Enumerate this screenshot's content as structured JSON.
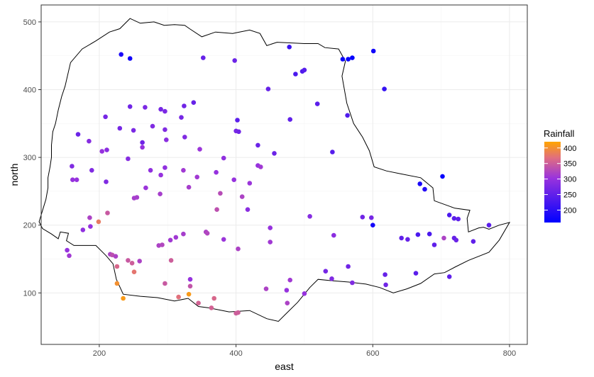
{
  "chart_data": {
    "type": "scatter",
    "xlabel": "east",
    "ylabel": "north",
    "xlim": [
      115,
      826
    ],
    "ylim": [
      24,
      525
    ],
    "xticks": [
      200,
      400,
      600,
      800
    ],
    "xtick_labels": [
      "200",
      "400",
      "600",
      "800"
    ],
    "yticks": [
      100,
      200,
      300,
      400,
      500
    ],
    "ytick_labels": [
      "100",
      "200",
      "300",
      "400",
      "500"
    ],
    "grid": true,
    "legend": {
      "title": "Rainfall",
      "position": "right",
      "range": [
        160,
        420
      ],
      "ticks": [
        200,
        250,
        300,
        350,
        400
      ],
      "tick_labels": [
        "200",
        "250",
        "300",
        "350",
        "400"
      ],
      "color_low": "#0000ff",
      "color_high": "#ffa500"
    },
    "colors": {
      "low": "#0000ff",
      "mid": "#9933dd",
      "high": "#ffa500",
      "panel_border": "#333333",
      "grid_major": "#ebebeb",
      "grid_minor": "#f5f5f5",
      "outline": "#000000"
    },
    "outline": [
      [
        140,
        180
      ],
      [
        143,
        190
      ],
      [
        155,
        188
      ],
      [
        152,
        177
      ],
      [
        163,
        170
      ],
      [
        180,
        170
      ],
      [
        195,
        170
      ],
      [
        210,
        155
      ],
      [
        220,
        143
      ],
      [
        225,
        120
      ],
      [
        235,
        98
      ],
      [
        260,
        95
      ],
      [
        285,
        93
      ],
      [
        310,
        88
      ],
      [
        330,
        92
      ],
      [
        345,
        80
      ],
      [
        360,
        78
      ],
      [
        390,
        72
      ],
      [
        420,
        74
      ],
      [
        445,
        62
      ],
      [
        462,
        58
      ],
      [
        472,
        68
      ],
      [
        490,
        86
      ],
      [
        508,
        108
      ],
      [
        520,
        120
      ],
      [
        540,
        118
      ],
      [
        565,
        116
      ],
      [
        590,
        113
      ],
      [
        610,
        108
      ],
      [
        630,
        100
      ],
      [
        650,
        106
      ],
      [
        670,
        114
      ],
      [
        690,
        128
      ],
      [
        705,
        130
      ],
      [
        720,
        138
      ],
      [
        740,
        148
      ],
      [
        770,
        160
      ],
      [
        785,
        178
      ],
      [
        800,
        204
      ],
      [
        785,
        200
      ],
      [
        770,
        194
      ],
      [
        762,
        197
      ],
      [
        755,
        196
      ],
      [
        740,
        190
      ],
      [
        738,
        210
      ],
      [
        742,
        222
      ],
      [
        720,
        225
      ],
      [
        690,
        236
      ],
      [
        688,
        255
      ],
      [
        670,
        270
      ],
      [
        640,
        276
      ],
      [
        620,
        280
      ],
      [
        602,
        286
      ],
      [
        595,
        310
      ],
      [
        585,
        330
      ],
      [
        572,
        350
      ],
      [
        562,
        380
      ],
      [
        555,
        420
      ],
      [
        560,
        442
      ],
      [
        550,
        460
      ],
      [
        530,
        462
      ],
      [
        520,
        468
      ],
      [
        500,
        468
      ],
      [
        460,
        470
      ],
      [
        445,
        465
      ],
      [
        435,
        483
      ],
      [
        420,
        488
      ],
      [
        405,
        485
      ],
      [
        395,
        483
      ],
      [
        370,
        485
      ],
      [
        350,
        478
      ],
      [
        332,
        490
      ],
      [
        325,
        495
      ],
      [
        310,
        496
      ],
      [
        295,
        495
      ],
      [
        280,
        500
      ],
      [
        260,
        498
      ],
      [
        245,
        505
      ],
      [
        230,
        490
      ],
      [
        215,
        485
      ],
      [
        195,
        472
      ],
      [
        175,
        460
      ],
      [
        158,
        440
      ],
      [
        150,
        405
      ],
      [
        145,
        390
      ],
      [
        140,
        370
      ],
      [
        136,
        350
      ],
      [
        132,
        338
      ],
      [
        130,
        318
      ],
      [
        130,
        300
      ],
      [
        128,
        286
      ],
      [
        125,
        270
      ],
      [
        125,
        255
      ],
      [
        122,
        238
      ],
      [
        118,
        225
      ],
      [
        112,
        205
      ],
      [
        117,
        195
      ],
      [
        130,
        187
      ],
      [
        140,
        180
      ]
    ],
    "points": [
      {
        "x": 232,
        "y": 452,
        "v": 185
      },
      {
        "x": 245,
        "y": 446,
        "v": 175
      },
      {
        "x": 352,
        "y": 447,
        "v": 255
      },
      {
        "x": 398,
        "y": 443,
        "v": 260
      },
      {
        "x": 478,
        "y": 463,
        "v": 215
      },
      {
        "x": 487,
        "y": 423,
        "v": 230
      },
      {
        "x": 497,
        "y": 427,
        "v": 235
      },
      {
        "x": 500,
        "y": 429,
        "v": 240
      },
      {
        "x": 556,
        "y": 445,
        "v": 170
      },
      {
        "x": 564,
        "y": 445,
        "v": 170
      },
      {
        "x": 570,
        "y": 447,
        "v": 165
      },
      {
        "x": 601,
        "y": 457,
        "v": 175
      },
      {
        "x": 617,
        "y": 401,
        "v": 210
      },
      {
        "x": 447,
        "y": 401,
        "v": 255
      },
      {
        "x": 519,
        "y": 379,
        "v": 245
      },
      {
        "x": 563,
        "y": 362,
        "v": 235
      },
      {
        "x": 479,
        "y": 356,
        "v": 250
      },
      {
        "x": 541,
        "y": 308,
        "v": 240
      },
      {
        "x": 456,
        "y": 306,
        "v": 260
      },
      {
        "x": 432,
        "y": 318,
        "v": 260
      },
      {
        "x": 338,
        "y": 381,
        "v": 255
      },
      {
        "x": 324,
        "y": 376,
        "v": 265
      },
      {
        "x": 267,
        "y": 374,
        "v": 275
      },
      {
        "x": 245,
        "y": 375,
        "v": 265
      },
      {
        "x": 290,
        "y": 371,
        "v": 270
      },
      {
        "x": 296,
        "y": 368,
        "v": 275
      },
      {
        "x": 320,
        "y": 359,
        "v": 270
      },
      {
        "x": 402,
        "y": 355,
        "v": 245
      },
      {
        "x": 169,
        "y": 334,
        "v": 260
      },
      {
        "x": 209,
        "y": 360,
        "v": 270
      },
      {
        "x": 230,
        "y": 343,
        "v": 270
      },
      {
        "x": 250,
        "y": 340,
        "v": 275
      },
      {
        "x": 278,
        "y": 346,
        "v": 280
      },
      {
        "x": 296,
        "y": 341,
        "v": 280
      },
      {
        "x": 400,
        "y": 339,
        "v": 270
      },
      {
        "x": 404,
        "y": 338,
        "v": 265
      },
      {
        "x": 185,
        "y": 324,
        "v": 285
      },
      {
        "x": 263,
        "y": 322,
        "v": 265
      },
      {
        "x": 298,
        "y": 326,
        "v": 290
      },
      {
        "x": 325,
        "y": 330,
        "v": 280
      },
      {
        "x": 204,
        "y": 309,
        "v": 300
      },
      {
        "x": 211,
        "y": 311,
        "v": 290
      },
      {
        "x": 263,
        "y": 315,
        "v": 300
      },
      {
        "x": 347,
        "y": 312,
        "v": 305
      },
      {
        "x": 382,
        "y": 299,
        "v": 295
      },
      {
        "x": 160,
        "y": 287,
        "v": 280
      },
      {
        "x": 242,
        "y": 298,
        "v": 285
      },
      {
        "x": 275,
        "y": 281,
        "v": 295
      },
      {
        "x": 296,
        "y": 285,
        "v": 295
      },
      {
        "x": 290,
        "y": 274,
        "v": 300
      },
      {
        "x": 323,
        "y": 281,
        "v": 310
      },
      {
        "x": 343,
        "y": 271,
        "v": 310
      },
      {
        "x": 371,
        "y": 278,
        "v": 300
      },
      {
        "x": 397,
        "y": 267,
        "v": 300
      },
      {
        "x": 420,
        "y": 262,
        "v": 305
      },
      {
        "x": 432,
        "y": 288,
        "v": 300
      },
      {
        "x": 436,
        "y": 286,
        "v": 310
      },
      {
        "x": 189,
        "y": 281,
        "v": 280
      },
      {
        "x": 161,
        "y": 267,
        "v": 300
      },
      {
        "x": 167,
        "y": 267,
        "v": 300
      },
      {
        "x": 210,
        "y": 264,
        "v": 280
      },
      {
        "x": 268,
        "y": 255,
        "v": 305
      },
      {
        "x": 289,
        "y": 246,
        "v": 315
      },
      {
        "x": 331,
        "y": 256,
        "v": 315
      },
      {
        "x": 377,
        "y": 247,
        "v": 330
      },
      {
        "x": 409,
        "y": 242,
        "v": 320
      },
      {
        "x": 251,
        "y": 240,
        "v": 315
      },
      {
        "x": 255,
        "y": 241,
        "v": 315
      },
      {
        "x": 212,
        "y": 218,
        "v": 345
      },
      {
        "x": 186,
        "y": 211,
        "v": 320
      },
      {
        "x": 199,
        "y": 205,
        "v": 380
      },
      {
        "x": 176,
        "y": 193,
        "v": 295
      },
      {
        "x": 187,
        "y": 198,
        "v": 300
      },
      {
        "x": 372,
        "y": 223,
        "v": 335
      },
      {
        "x": 417,
        "y": 223,
        "v": 290
      },
      {
        "x": 450,
        "y": 196,
        "v": 300
      },
      {
        "x": 508,
        "y": 213,
        "v": 285
      },
      {
        "x": 585,
        "y": 212,
        "v": 265
      },
      {
        "x": 598,
        "y": 211,
        "v": 270
      },
      {
        "x": 600,
        "y": 200,
        "v": 180
      },
      {
        "x": 356,
        "y": 190,
        "v": 320
      },
      {
        "x": 358,
        "y": 188,
        "v": 325
      },
      {
        "x": 323,
        "y": 187,
        "v": 315
      },
      {
        "x": 312,
        "y": 182,
        "v": 310
      },
      {
        "x": 382,
        "y": 179,
        "v": 305
      },
      {
        "x": 450,
        "y": 175,
        "v": 310
      },
      {
        "x": 543,
        "y": 185,
        "v": 290
      },
      {
        "x": 642,
        "y": 181,
        "v": 250
      },
      {
        "x": 651,
        "y": 179,
        "v": 255
      },
      {
        "x": 666,
        "y": 186,
        "v": 230
      },
      {
        "x": 683,
        "y": 187,
        "v": 230
      },
      {
        "x": 690,
        "y": 171,
        "v": 250
      },
      {
        "x": 712,
        "y": 215,
        "v": 230
      },
      {
        "x": 719,
        "y": 210,
        "v": 245
      },
      {
        "x": 725,
        "y": 209,
        "v": 250
      },
      {
        "x": 704,
        "y": 181,
        "v": 320
      },
      {
        "x": 719,
        "y": 181,
        "v": 255
      },
      {
        "x": 722,
        "y": 178,
        "v": 260
      },
      {
        "x": 747,
        "y": 176,
        "v": 250
      },
      {
        "x": 770,
        "y": 200,
        "v": 245
      },
      {
        "x": 304,
        "y": 178,
        "v": 310
      },
      {
        "x": 287,
        "y": 170,
        "v": 320
      },
      {
        "x": 292,
        "y": 171,
        "v": 325
      },
      {
        "x": 403,
        "y": 165,
        "v": 320
      },
      {
        "x": 153,
        "y": 163,
        "v": 300
      },
      {
        "x": 156,
        "y": 155,
        "v": 310
      },
      {
        "x": 216,
        "y": 157,
        "v": 320
      },
      {
        "x": 219,
        "y": 156,
        "v": 335
      },
      {
        "x": 224,
        "y": 154,
        "v": 320
      },
      {
        "x": 242,
        "y": 148,
        "v": 345
      },
      {
        "x": 248,
        "y": 144,
        "v": 350
      },
      {
        "x": 259,
        "y": 147,
        "v": 320
      },
      {
        "x": 305,
        "y": 148,
        "v": 350
      },
      {
        "x": 226,
        "y": 139,
        "v": 360
      },
      {
        "x": 251,
        "y": 131,
        "v": 375
      },
      {
        "x": 333,
        "y": 120,
        "v": 300
      },
      {
        "x": 333,
        "y": 110,
        "v": 340
      },
      {
        "x": 296,
        "y": 114,
        "v": 345
      },
      {
        "x": 226,
        "y": 114,
        "v": 400
      },
      {
        "x": 235,
        "y": 92,
        "v": 410
      },
      {
        "x": 316,
        "y": 94,
        "v": 370
      },
      {
        "x": 331,
        "y": 98,
        "v": 410
      },
      {
        "x": 345,
        "y": 85,
        "v": 355
      },
      {
        "x": 368,
        "y": 92,
        "v": 360
      },
      {
        "x": 364,
        "y": 78,
        "v": 355
      },
      {
        "x": 400,
        "y": 70,
        "v": 350
      },
      {
        "x": 403,
        "y": 71,
        "v": 350
      },
      {
        "x": 444,
        "y": 106,
        "v": 320
      },
      {
        "x": 474,
        "y": 104,
        "v": 300
      },
      {
        "x": 479,
        "y": 119,
        "v": 310
      },
      {
        "x": 475,
        "y": 85,
        "v": 320
      },
      {
        "x": 500,
        "y": 99,
        "v": 300
      },
      {
        "x": 531,
        "y": 132,
        "v": 270
      },
      {
        "x": 540,
        "y": 121,
        "v": 280
      },
      {
        "x": 564,
        "y": 139,
        "v": 265
      },
      {
        "x": 570,
        "y": 115,
        "v": 280
      },
      {
        "x": 618,
        "y": 127,
        "v": 255
      },
      {
        "x": 619,
        "y": 112,
        "v": 265
      },
      {
        "x": 663,
        "y": 129,
        "v": 245
      },
      {
        "x": 712,
        "y": 124,
        "v": 250
      },
      {
        "x": 669,
        "y": 261,
        "v": 185
      },
      {
        "x": 676,
        "y": 253,
        "v": 195
      },
      {
        "x": 702,
        "y": 272,
        "v": 165
      }
    ]
  }
}
